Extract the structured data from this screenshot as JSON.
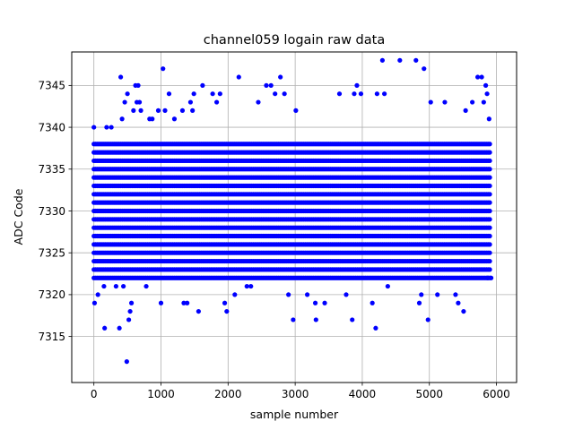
{
  "chart_data": {
    "type": "scatter",
    "title": "channel059 logain raw data",
    "xlabel": "sample number",
    "ylabel": "ADC Code",
    "xlim": [
      -330,
      6300
    ],
    "ylim": [
      7309.5,
      7349
    ],
    "xticks": [
      0,
      1000,
      2000,
      3000,
      4000,
      5000,
      6000
    ],
    "yticks": [
      7315,
      7320,
      7325,
      7330,
      7335,
      7340,
      7345
    ],
    "grid": true,
    "marker_color": "#0000ff",
    "series": [
      {
        "marker": "circle",
        "color": "#0000ff",
        "x_range": [
          0,
          5915
        ],
        "x_step": 25,
        "core_range": [
          7322,
          7338
        ],
        "points": [
          {
            "x": 0,
            "y": 7340
          },
          {
            "x": 10,
            "y": 7319
          },
          {
            "x": 60,
            "y": 7320
          },
          {
            "x": 150,
            "y": 7321
          },
          {
            "x": 160,
            "y": 7316
          },
          {
            "x": 190,
            "y": 7340
          },
          {
            "x": 260,
            "y": 7340
          },
          {
            "x": 330,
            "y": 7321
          },
          {
            "x": 380,
            "y": 7316
          },
          {
            "x": 400,
            "y": 7346
          },
          {
            "x": 420,
            "y": 7341
          },
          {
            "x": 440,
            "y": 7321
          },
          {
            "x": 460,
            "y": 7343
          },
          {
            "x": 490,
            "y": 7312
          },
          {
            "x": 500,
            "y": 7344
          },
          {
            "x": 520,
            "y": 7317
          },
          {
            "x": 540,
            "y": 7318
          },
          {
            "x": 560,
            "y": 7319
          },
          {
            "x": 590,
            "y": 7342
          },
          {
            "x": 620,
            "y": 7345
          },
          {
            "x": 640,
            "y": 7343
          },
          {
            "x": 660,
            "y": 7345
          },
          {
            "x": 680,
            "y": 7343
          },
          {
            "x": 700,
            "y": 7342
          },
          {
            "x": 780,
            "y": 7321
          },
          {
            "x": 830,
            "y": 7341
          },
          {
            "x": 870,
            "y": 7341
          },
          {
            "x": 960,
            "y": 7342
          },
          {
            "x": 1000,
            "y": 7319
          },
          {
            "x": 1030,
            "y": 7347
          },
          {
            "x": 1060,
            "y": 7342
          },
          {
            "x": 1120,
            "y": 7344
          },
          {
            "x": 1200,
            "y": 7341
          },
          {
            "x": 1320,
            "y": 7342
          },
          {
            "x": 1340,
            "y": 7319
          },
          {
            "x": 1390,
            "y": 7319
          },
          {
            "x": 1440,
            "y": 7343
          },
          {
            "x": 1470,
            "y": 7342
          },
          {
            "x": 1490,
            "y": 7344
          },
          {
            "x": 1560,
            "y": 7318
          },
          {
            "x": 1620,
            "y": 7345
          },
          {
            "x": 1770,
            "y": 7344
          },
          {
            "x": 1830,
            "y": 7343
          },
          {
            "x": 1880,
            "y": 7344
          },
          {
            "x": 1950,
            "y": 7319
          },
          {
            "x": 1980,
            "y": 7318
          },
          {
            "x": 2100,
            "y": 7320
          },
          {
            "x": 2160,
            "y": 7346
          },
          {
            "x": 2280,
            "y": 7321
          },
          {
            "x": 2340,
            "y": 7321
          },
          {
            "x": 2450,
            "y": 7343
          },
          {
            "x": 2570,
            "y": 7345
          },
          {
            "x": 2640,
            "y": 7345
          },
          {
            "x": 2700,
            "y": 7344
          },
          {
            "x": 2780,
            "y": 7346
          },
          {
            "x": 2840,
            "y": 7344
          },
          {
            "x": 2900,
            "y": 7320
          },
          {
            "x": 2970,
            "y": 7317
          },
          {
            "x": 3010,
            "y": 7342
          },
          {
            "x": 3180,
            "y": 7320
          },
          {
            "x": 3300,
            "y": 7319
          },
          {
            "x": 3310,
            "y": 7317
          },
          {
            "x": 3440,
            "y": 7319
          },
          {
            "x": 3660,
            "y": 7344
          },
          {
            "x": 3760,
            "y": 7320
          },
          {
            "x": 3850,
            "y": 7317
          },
          {
            "x": 3880,
            "y": 7344
          },
          {
            "x": 3920,
            "y": 7345
          },
          {
            "x": 3980,
            "y": 7344
          },
          {
            "x": 4150,
            "y": 7319
          },
          {
            "x": 4200,
            "y": 7316
          },
          {
            "x": 4220,
            "y": 7344
          },
          {
            "x": 4300,
            "y": 7348
          },
          {
            "x": 4330,
            "y": 7344
          },
          {
            "x": 4380,
            "y": 7321
          },
          {
            "x": 4560,
            "y": 7348
          },
          {
            "x": 4800,
            "y": 7348
          },
          {
            "x": 4850,
            "y": 7319
          },
          {
            "x": 4880,
            "y": 7320
          },
          {
            "x": 4920,
            "y": 7347
          },
          {
            "x": 4980,
            "y": 7317
          },
          {
            "x": 5020,
            "y": 7343
          },
          {
            "x": 5120,
            "y": 7320
          },
          {
            "x": 5230,
            "y": 7343
          },
          {
            "x": 5390,
            "y": 7320
          },
          {
            "x": 5430,
            "y": 7319
          },
          {
            "x": 5510,
            "y": 7318
          },
          {
            "x": 5540,
            "y": 7342
          },
          {
            "x": 5640,
            "y": 7343
          },
          {
            "x": 5720,
            "y": 7346
          },
          {
            "x": 5780,
            "y": 7346
          },
          {
            "x": 5810,
            "y": 7343
          },
          {
            "x": 5840,
            "y": 7345
          },
          {
            "x": 5860,
            "y": 7344
          },
          {
            "x": 5870,
            "y": 7322
          },
          {
            "x": 5890,
            "y": 7341
          },
          {
            "x": 5920,
            "y": 7322
          }
        ]
      }
    ]
  }
}
